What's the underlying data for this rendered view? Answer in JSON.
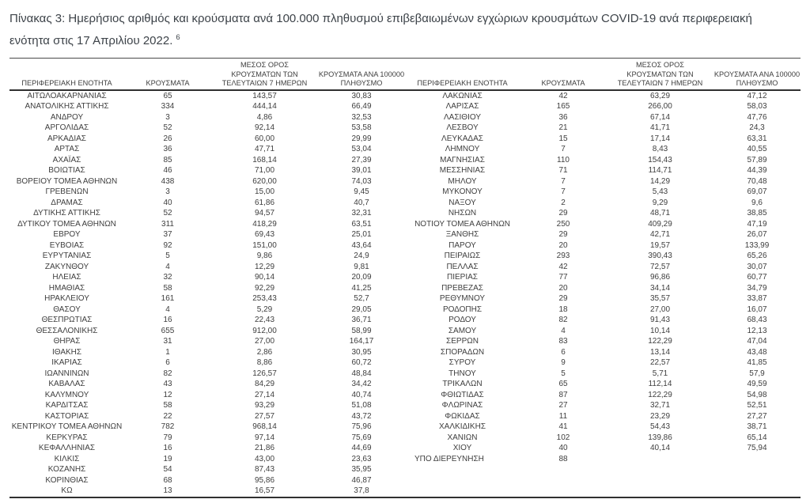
{
  "title": {
    "lines": [
      "Πίνακας 3: Ημερήσιος αριθμός και κρούσματα ανά 100.000 πληθυσμού επιβεβαιωμένων εγχώριων κρουσμάτων COVID-19 ανά περιφερειακή",
      "ενότητα στις 17 Απριλίου 2022."
    ],
    "footnote_ref": "6"
  },
  "table": {
    "headers": {
      "region": "ΠΕΡΙΦΕΡΕΙΑΚΗ ΕΝΟΤΗΤΑ",
      "cases": "ΚΡΟΥΣΜΑΤΑ",
      "avg7_lines": [
        "ΜΕΣΟΣ ΟΡΟΣ",
        "ΚΡΟΥΣΜΑΤΩΝ ΤΩΝ",
        "ΤΕΛΕΥΤΑΙΩΝ 7 ΗΜΕΡΩΝ"
      ],
      "per100k_lines": [
        "ΚΡΟΥΣΜΑΤΑ ΑΝΑ 100000",
        "ΠΛΗΘΥΣΜΟ"
      ]
    },
    "left_aligned_regions": [
      "ΥΠΟ ΔΙΕΡΕΥΝΗΣΗ"
    ],
    "left_rows": [
      [
        "ΑΙΤΩΛΟΑΚΑΡΝΑΝΙΑΣ",
        "65",
        "143,57",
        "30,83"
      ],
      [
        "ΑΝΑΤΟΛΙΚΗΣ ΑΤΤΙΚΗΣ",
        "334",
        "444,14",
        "66,49"
      ],
      [
        "ΑΝΔΡΟΥ",
        "3",
        "4,86",
        "32,53"
      ],
      [
        "ΑΡΓΟΛΙΔΑΣ",
        "52",
        "92,14",
        "53,58"
      ],
      [
        "ΑΡΚΑΔΙΑΣ",
        "26",
        "60,00",
        "29,99"
      ],
      [
        "ΑΡΤΑΣ",
        "36",
        "47,71",
        "53,04"
      ],
      [
        "ΑΧΑΪΑΣ",
        "85",
        "168,14",
        "27,39"
      ],
      [
        "ΒΟΙΩΤΙΑΣ",
        "46",
        "71,00",
        "39,01"
      ],
      [
        "ΒΟΡΕΙΟΥ ΤΟΜΕΑ ΑΘΗΝΩΝ",
        "438",
        "620,00",
        "74,03"
      ],
      [
        "ΓΡΕΒΕΝΩΝ",
        "3",
        "15,00",
        "9,45"
      ],
      [
        "ΔΡΑΜΑΣ",
        "40",
        "61,86",
        "40,7"
      ],
      [
        "ΔΥΤΙΚΗΣ ΑΤΤΙΚΗΣ",
        "52",
        "94,57",
        "32,31"
      ],
      [
        "ΔΥΤΙΚΟΥ ΤΟΜΕΑ ΑΘΗΝΩΝ",
        "311",
        "418,29",
        "63,51"
      ],
      [
        "ΕΒΡΟΥ",
        "37",
        "69,43",
        "25,01"
      ],
      [
        "ΕΥΒΟΙΑΣ",
        "92",
        "151,00",
        "43,64"
      ],
      [
        "ΕΥΡΥΤΑΝΙΑΣ",
        "5",
        "9,86",
        "24,9"
      ],
      [
        "ΖΑΚΥΝΘΟΥ",
        "4",
        "12,29",
        "9,81"
      ],
      [
        "ΗΛΕΙΑΣ",
        "32",
        "90,14",
        "20,09"
      ],
      [
        "ΗΜΑΘΙΑΣ",
        "58",
        "92,29",
        "41,25"
      ],
      [
        "ΗΡΑΚΛΕΙΟΥ",
        "161",
        "253,43",
        "52,7"
      ],
      [
        "ΘΑΣΟΥ",
        "4",
        "5,29",
        "29,05"
      ],
      [
        "ΘΕΣΠΡΩΤΙΑΣ",
        "16",
        "22,43",
        "36,71"
      ],
      [
        "ΘΕΣΣΑΛΟΝΙΚΗΣ",
        "655",
        "912,00",
        "58,99"
      ],
      [
        "ΘΗΡΑΣ",
        "31",
        "27,00",
        "164,17"
      ],
      [
        "ΙΘΑΚΗΣ",
        "1",
        "2,86",
        "30,95"
      ],
      [
        "ΙΚΑΡΙΑΣ",
        "6",
        "8,86",
        "60,72"
      ],
      [
        "ΙΩΑΝΝΙΝΩΝ",
        "82",
        "126,57",
        "48,84"
      ],
      [
        "ΚΑΒΑΛΑΣ",
        "43",
        "84,29",
        "34,42"
      ],
      [
        "ΚΑΛΥΜΝΟΥ",
        "12",
        "27,14",
        "40,74"
      ],
      [
        "ΚΑΡΔΙΤΣΑΣ",
        "58",
        "93,29",
        "51,08"
      ],
      [
        "ΚΑΣΤΟΡΙΑΣ",
        "22",
        "27,57",
        "43,72"
      ],
      [
        "ΚΕΝΤΡΙΚΟΥ ΤΟΜΕΑ ΑΘΗΝΩΝ",
        "782",
        "968,14",
        "75,96"
      ],
      [
        "ΚΕΡΚΥΡΑΣ",
        "79",
        "97,14",
        "75,69"
      ],
      [
        "ΚΕΦΑΛΛΗΝΙΑΣ",
        "16",
        "21,86",
        "44,69"
      ],
      [
        "ΚΙΛΚΙΣ",
        "19",
        "43,00",
        "23,63"
      ],
      [
        "ΚΟΖΑΝΗΣ",
        "54",
        "87,43",
        "35,95"
      ],
      [
        "ΚΟΡΙΝΘΙΑΣ",
        "68",
        "95,86",
        "46,87"
      ],
      [
        "ΚΩ",
        "13",
        "16,57",
        "37,8"
      ]
    ],
    "right_rows": [
      [
        "ΛΑΚΩΝΙΑΣ",
        "42",
        "63,29",
        "47,12"
      ],
      [
        "ΛΑΡΙΣΑΣ",
        "165",
        "266,00",
        "58,03"
      ],
      [
        "ΛΑΣΙΘΙΟΥ",
        "36",
        "67,14",
        "47,76"
      ],
      [
        "ΛΕΣΒΟΥ",
        "21",
        "41,71",
        "24,3"
      ],
      [
        "ΛΕΥΚΑΔΑΣ",
        "15",
        "17,14",
        "63,31"
      ],
      [
        "ΛΗΜΝΟΥ",
        "7",
        "8,43",
        "40,55"
      ],
      [
        "ΜΑΓΝΗΣΙΑΣ",
        "110",
        "154,43",
        "57,89"
      ],
      [
        "ΜΕΣΣΗΝΙΑΣ",
        "71",
        "114,71",
        "44,39"
      ],
      [
        "ΜΗΛΟΥ",
        "7",
        "14,29",
        "70,48"
      ],
      [
        "ΜΥΚΟΝΟΥ",
        "7",
        "5,43",
        "69,07"
      ],
      [
        "ΝΑΞΟΥ",
        "2",
        "9,29",
        "9,6"
      ],
      [
        "ΝΗΣΩΝ",
        "29",
        "48,71",
        "38,85"
      ],
      [
        "ΝΟΤΙΟΥ ΤΟΜΕΑ ΑΘΗΝΩΝ",
        "250",
        "409,29",
        "47,19"
      ],
      [
        "ΞΑΝΘΗΣ",
        "29",
        "42,71",
        "26,07"
      ],
      [
        "ΠΑΡΟΥ",
        "20",
        "19,57",
        "133,99"
      ],
      [
        "ΠΕΙΡΑΙΩΣ",
        "293",
        "390,43",
        "65,26"
      ],
      [
        "ΠΕΛΛΑΣ",
        "42",
        "72,57",
        "30,07"
      ],
      [
        "ΠΙΕΡΙΑΣ",
        "77",
        "96,86",
        "60,77"
      ],
      [
        "ΠΡΕΒΕΖΑΣ",
        "20",
        "34,14",
        "34,79"
      ],
      [
        "ΡΕΘΥΜΝΟΥ",
        "29",
        "35,57",
        "33,87"
      ],
      [
        "ΡΟΔΟΠΗΣ",
        "18",
        "27,00",
        "16,07"
      ],
      [
        "ΡΟΔΟΥ",
        "82",
        "91,43",
        "68,43"
      ],
      [
        "ΣΑΜΟΥ",
        "4",
        "10,14",
        "12,13"
      ],
      [
        "ΣΕΡΡΩΝ",
        "83",
        "122,29",
        "47,04"
      ],
      [
        "ΣΠΟΡΑΔΩΝ",
        "6",
        "13,14",
        "43,48"
      ],
      [
        "ΣΥΡΟΥ",
        "9",
        "22,57",
        "41,85"
      ],
      [
        "ΤΗΝΟΥ",
        "5",
        "5,71",
        "57,9"
      ],
      [
        "ΤΡΙΚΑΛΩΝ",
        "65",
        "112,14",
        "49,59"
      ],
      [
        "ΦΘΙΩΤΙΔΑΣ",
        "87",
        "122,29",
        "54,98"
      ],
      [
        "ΦΛΩΡΙΝΑΣ",
        "27",
        "32,71",
        "52,51"
      ],
      [
        "ΦΩΚΙΔΑΣ",
        "11",
        "23,29",
        "27,27"
      ],
      [
        "ΧΑΛΚΙΔΙΚΗΣ",
        "41",
        "54,43",
        "38,71"
      ],
      [
        "ΧΑΝΙΩΝ",
        "102",
        "139,86",
        "65,14"
      ],
      [
        "ΧΙΟΥ",
        "40",
        "40,14",
        "75,94"
      ],
      [
        "ΥΠΟ ΔΙΕΡΕΥΝΗΣΗ",
        "88",
        "",
        ""
      ]
    ]
  }
}
